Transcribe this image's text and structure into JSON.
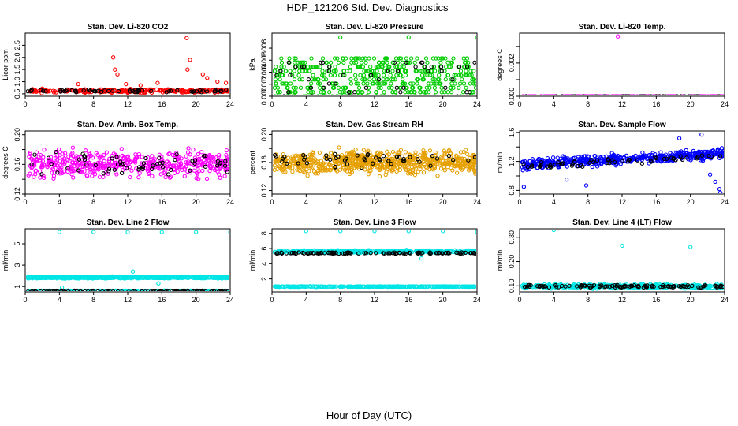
{
  "title": "HDP_121206  Std. Dev. Diagnostics",
  "xlabel": "Hour of Day (UTC)",
  "colors": {
    "red": "#ff0000",
    "green": "#00cc00",
    "magenta": "#ff00ff",
    "orange": "#e6a000",
    "blue": "#0000ff",
    "cyan": "#00e5e5",
    "black": "#000000"
  },
  "chart_data": [
    {
      "type": "scatter",
      "title": "Stan. Dev. Li-820 CO2",
      "ylabel": "Licor ppm",
      "xlim": [
        0,
        24
      ],
      "ylim": [
        0.4,
        3.0
      ],
      "xticks": [
        0,
        4,
        8,
        12,
        16,
        20,
        24
      ],
      "yticks": [
        0.5,
        1.0,
        1.5,
        2.0,
        2.5
      ],
      "ytick_labels": [
        "0.5",
        "1.0",
        "1.5",
        "2.0",
        "2.5"
      ],
      "series": [
        {
          "color": "red",
          "gen": {
            "n": 260,
            "base": 0.62,
            "spread": 0.1,
            "seed": 11
          },
          "extra": [
            [
              10.3,
              2.0
            ],
            [
              10.5,
              1.5
            ],
            [
              10.8,
              1.3
            ],
            [
              18.9,
              2.8
            ],
            [
              19.3,
              1.9
            ],
            [
              19.0,
              1.5
            ],
            [
              20.8,
              1.3
            ],
            [
              21.3,
              1.15
            ],
            [
              22.5,
              1.0
            ],
            [
              23.5,
              0.95
            ],
            [
              15.5,
              0.95
            ],
            [
              6.2,
              0.9
            ],
            [
              11.8,
              0.9
            ],
            [
              13.5,
              0.85
            ]
          ]
        },
        {
          "color": "black",
          "gen": {
            "n": 60,
            "base": 0.62,
            "spread": 0.08,
            "seed": 12
          }
        }
      ]
    },
    {
      "type": "scatter",
      "title": "Stan. Dev. Li-820 Pressure",
      "ylabel": "kPa",
      "xlim": [
        0,
        24
      ],
      "ylim": [
        0,
        0.0105
      ],
      "xticks": [
        0,
        4,
        8,
        12,
        16,
        20,
        24
      ],
      "yticks": [
        0.0,
        0.002,
        0.004,
        0.006,
        0.008
      ],
      "ytick_labels": [
        "0.000",
        "0.002",
        "0.004",
        "0.006",
        "0.008"
      ],
      "series": [
        {
          "color": "green",
          "gen": {
            "n": 500,
            "base": 0.003,
            "spread": 0.0028,
            "seed": 21,
            "levels": [
              0.0,
              0.0007,
              0.0014,
              0.0021,
              0.0028,
              0.0035,
              0.0042,
              0.0049,
              0.0056,
              0.0063
            ]
          },
          "extra": [
            [
              8.0,
              0.0098
            ],
            [
              16.0,
              0.0098
            ],
            [
              24.0,
              0.0098
            ]
          ]
        },
        {
          "color": "black",
          "gen": {
            "n": 50,
            "base": 0.003,
            "spread": 0.0025,
            "seed": 22,
            "levels": [
              0.0,
              0.0007,
              0.0014,
              0.0021,
              0.0028,
              0.0035,
              0.0042,
              0.0049,
              0.0056
            ]
          }
        }
      ]
    },
    {
      "type": "scatter",
      "title": "Stan. Dev. Li-820 Temp.",
      "ylabel": "degrees C",
      "xlim": [
        0,
        24
      ],
      "ylim": [
        0,
        0.0038
      ],
      "xticks": [
        0,
        4,
        8,
        12,
        16,
        20,
        24
      ],
      "yticks": [
        0.0,
        0.001,
        0.002,
        0.003
      ],
      "ytick_labels": [
        "0.000",
        "",
        "0.002",
        ""
      ],
      "series": [
        {
          "color": "magenta",
          "gen": {
            "n": 240,
            "base": 0.0,
            "spread": 0.0,
            "seed": 31
          },
          "extra": [
            [
              11.5,
              0.0036
            ]
          ]
        },
        {
          "color": "black",
          "gen": {
            "n": 30,
            "base": 0.0,
            "spread": 0.0,
            "seed": 32
          }
        }
      ]
    },
    {
      "type": "scatter",
      "title": "Stan. Dev. Amb. Box Temp.",
      "ylabel": "degrees C",
      "xlim": [
        0,
        24
      ],
      "ylim": [
        0.12,
        0.205
      ],
      "xticks": [
        0,
        4,
        8,
        12,
        16,
        20,
        24
      ],
      "yticks": [
        0.12,
        0.14,
        0.16,
        0.18,
        0.2
      ],
      "ytick_labels": [
        "0.12",
        "",
        "0.16",
        "",
        "0.20"
      ],
      "series": [
        {
          "color": "magenta",
          "gen": {
            "n": 480,
            "base": 0.16,
            "spread": 0.025,
            "seed": 41
          }
        },
        {
          "color": "black",
          "gen": {
            "n": 60,
            "base": 0.16,
            "spread": 0.02,
            "seed": 42
          }
        }
      ]
    },
    {
      "type": "scatter",
      "title": "Stan. Dev. Gas Stream RH",
      "ylabel": "percent",
      "xlim": [
        0,
        24
      ],
      "ylim": [
        0.115,
        0.205
      ],
      "xticks": [
        0,
        4,
        8,
        12,
        16,
        20,
        24
      ],
      "yticks": [
        0.12,
        0.14,
        0.16,
        0.18,
        0.2
      ],
      "ytick_labels": [
        "0.12",
        "",
        "0.16",
        "",
        "0.20"
      ],
      "series": [
        {
          "color": "orange",
          "gen": {
            "n": 700,
            "base": 0.16,
            "spread": 0.022,
            "seed": 51
          }
        },
        {
          "color": "black",
          "gen": {
            "n": 50,
            "base": 0.165,
            "spread": 0.015,
            "seed": 52
          }
        }
      ]
    },
    {
      "type": "scatter",
      "title": "Stan. Dev. Sample Flow",
      "ylabel": "ml/min",
      "xlim": [
        0,
        24
      ],
      "ylim": [
        0.75,
        1.62
      ],
      "xticks": [
        0,
        4,
        8,
        12,
        16,
        20,
        24
      ],
      "yticks": [
        0.8,
        1.0,
        1.2,
        1.4,
        1.6
      ],
      "ytick_labels": [
        "0.8",
        "",
        "1.2",
        "",
        "1.6"
      ],
      "series": [
        {
          "color": "blue",
          "gen": {
            "n": 520,
            "base": 1.15,
            "trend": 0.16,
            "spread": 0.1,
            "seed": 61
          },
          "extra": [
            [
              0.5,
              0.85
            ],
            [
              5.5,
              0.95
            ],
            [
              7.8,
              0.87
            ],
            [
              18.7,
              1.52
            ],
            [
              21.3,
              1.57
            ],
            [
              22.3,
              1.02
            ],
            [
              22.9,
              0.92
            ],
            [
              23.4,
              0.82
            ],
            [
              23.5,
              0.77
            ]
          ]
        },
        {
          "color": "black",
          "gen": {
            "n": 60,
            "base": 1.13,
            "trend": 0.15,
            "spread": 0.07,
            "seed": 62
          }
        }
      ]
    },
    {
      "type": "scatter",
      "title": "Stan. Dev. Line 2 Flow",
      "ylabel": "ml/min",
      "xlim": [
        0,
        24
      ],
      "ylim": [
        0.5,
        6.4
      ],
      "xticks": [
        0,
        4,
        8,
        12,
        16,
        20,
        24
      ],
      "yticks": [
        1,
        3,
        5
      ],
      "ytick_labels": [
        "1",
        "3",
        "5"
      ],
      "series": [
        {
          "color": "cyan",
          "gen": {
            "n": 600,
            "base": 1.85,
            "spread": 0.12,
            "seed": 71
          },
          "extra": [
            [
              4.0,
              6.1
            ],
            [
              8.0,
              6.1
            ],
            [
              12.0,
              6.1
            ],
            [
              16.0,
              6.1
            ],
            [
              20.0,
              6.1
            ],
            [
              24.0,
              6.1
            ],
            [
              12.6,
              2.4
            ],
            [
              4.3,
              0.9
            ],
            [
              15.6,
              1.3
            ]
          ]
        },
        {
          "color": "cyan",
          "gen": {
            "n": 240,
            "base": 0.6,
            "spread": 0.03,
            "seed": 73
          }
        },
        {
          "color": "black",
          "gen": {
            "n": 110,
            "base": 0.6,
            "spread": 0.03,
            "seed": 72
          }
        }
      ]
    },
    {
      "type": "scatter",
      "title": "Stan. Dev. Line 3 Flow",
      "ylabel": "ml/min",
      "xlim": [
        0,
        24
      ],
      "ylim": [
        0.3,
        8.6
      ],
      "xticks": [
        0,
        4,
        8,
        12,
        16,
        20,
        24
      ],
      "yticks": [
        2,
        4,
        6,
        8
      ],
      "ytick_labels": [
        "2",
        "4",
        "6",
        "8"
      ],
      "series": [
        {
          "color": "cyan",
          "gen": {
            "n": 420,
            "base": 5.6,
            "spread": 0.25,
            "seed": 81
          },
          "extra": [
            [
              4.0,
              8.3
            ],
            [
              8.0,
              8.3
            ],
            [
              12.0,
              8.3
            ],
            [
              16.0,
              8.3
            ],
            [
              20.0,
              8.3
            ],
            [
              24.0,
              8.2
            ],
            [
              17.5,
              4.7
            ]
          ]
        },
        {
          "color": "cyan",
          "gen": {
            "n": 320,
            "base": 1.0,
            "spread": 0.06,
            "seed": 83
          }
        },
        {
          "color": "black",
          "gen": {
            "n": 110,
            "base": 5.4,
            "spread": 0.12,
            "seed": 82
          }
        }
      ]
    },
    {
      "type": "scatter",
      "title": "Stan. Dev. Line 4 (LT) Flow",
      "ylabel": "ml/min",
      "xlim": [
        0,
        24
      ],
      "ylim": [
        0.075,
        0.335
      ],
      "xticks": [
        0,
        4,
        8,
        12,
        16,
        20,
        24
      ],
      "yticks": [
        0.1,
        0.2,
        0.3
      ],
      "ytick_labels": [
        "0.10",
        "0.20",
        "0.30"
      ],
      "series": [
        {
          "color": "cyan",
          "gen": {
            "n": 500,
            "base": 0.098,
            "spread": 0.012,
            "seed": 91
          },
          "extra": [
            [
              4.0,
              0.33
            ],
            [
              12.0,
              0.265
            ],
            [
              20.0,
              0.26
            ]
          ]
        },
        {
          "color": "black",
          "gen": {
            "n": 110,
            "base": 0.098,
            "spread": 0.008,
            "seed": 92
          }
        }
      ]
    }
  ]
}
